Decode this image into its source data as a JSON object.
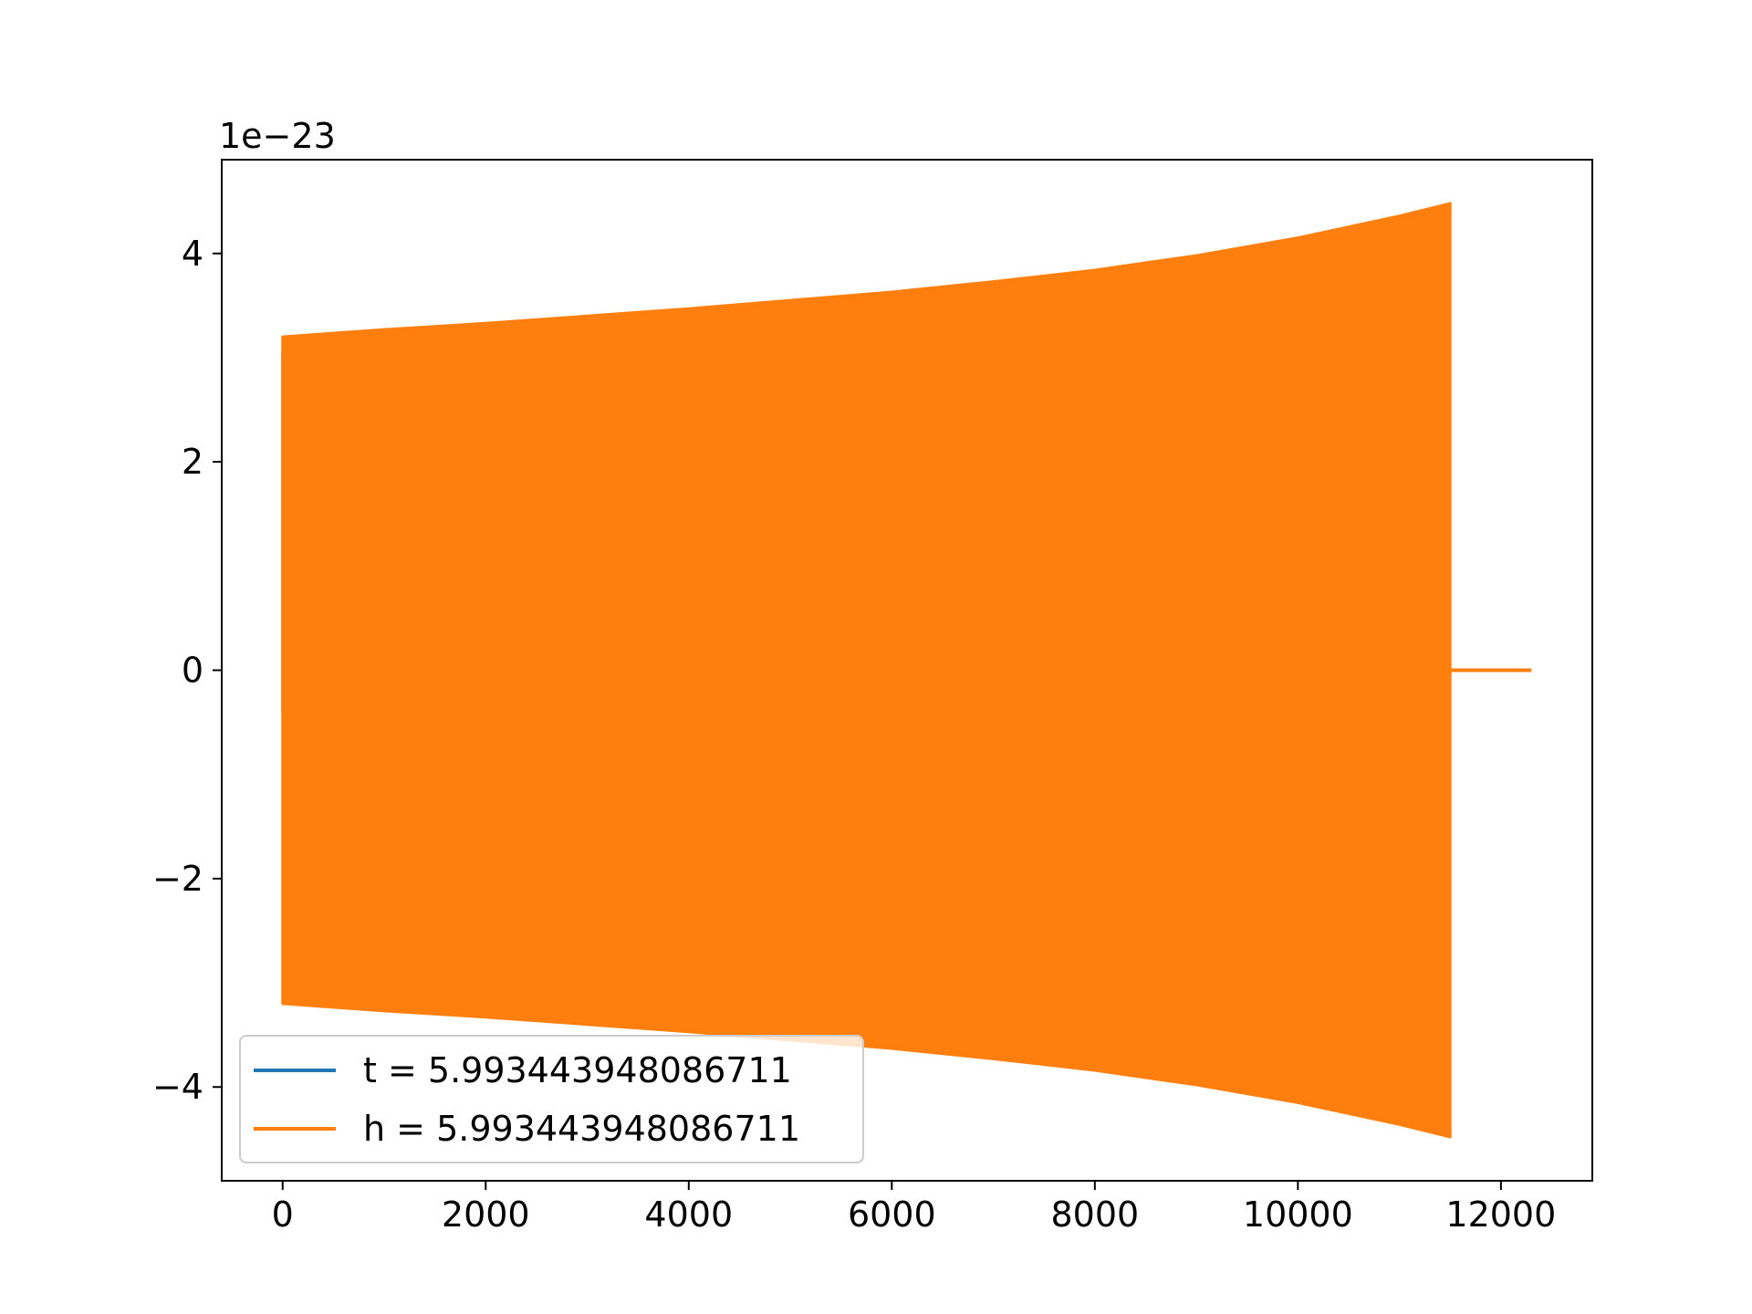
{
  "chart_data": {
    "type": "line",
    "title": "",
    "xlabel": "",
    "ylabel": "",
    "y_offset_label": "1e−23",
    "xlim": [
      -600,
      12900
    ],
    "ylim": [
      -4.9,
      4.9
    ],
    "y_scale_exponent": -23,
    "x_ticks": [
      0,
      2000,
      4000,
      6000,
      8000,
      10000,
      12000
    ],
    "x_tick_labels": [
      "0",
      "2000",
      "4000",
      "6000",
      "8000",
      "10000",
      "12000"
    ],
    "y_ticks": [
      4,
      2,
      0,
      -2,
      -4
    ],
    "y_tick_labels": [
      "4",
      "2",
      "0",
      "−2",
      "−4"
    ],
    "grid": false,
    "legend_position": "lower-left",
    "series": [
      {
        "name": "t = 5.993443948086711",
        "color": "#1f77b4",
        "points": [
          [
            0,
            0
          ],
          [
            0,
            3.05
          ],
          [
            0,
            -0.4
          ]
        ]
      },
      {
        "name": "h = 5.993443948086711",
        "color": "#ff7f0e",
        "envelope_x": [
          0,
          1000,
          2000,
          3000,
          4000,
          5000,
          6000,
          7000,
          8000,
          9000,
          10000,
          11000,
          11500
        ],
        "envelope_amplitude": [
          3.2,
          3.27,
          3.33,
          3.4,
          3.47,
          3.55,
          3.63,
          3.73,
          3.84,
          3.98,
          4.15,
          4.36,
          4.48
        ],
        "tail": [
          [
            11500,
            0
          ],
          [
            12300,
            0
          ]
        ]
      }
    ]
  }
}
